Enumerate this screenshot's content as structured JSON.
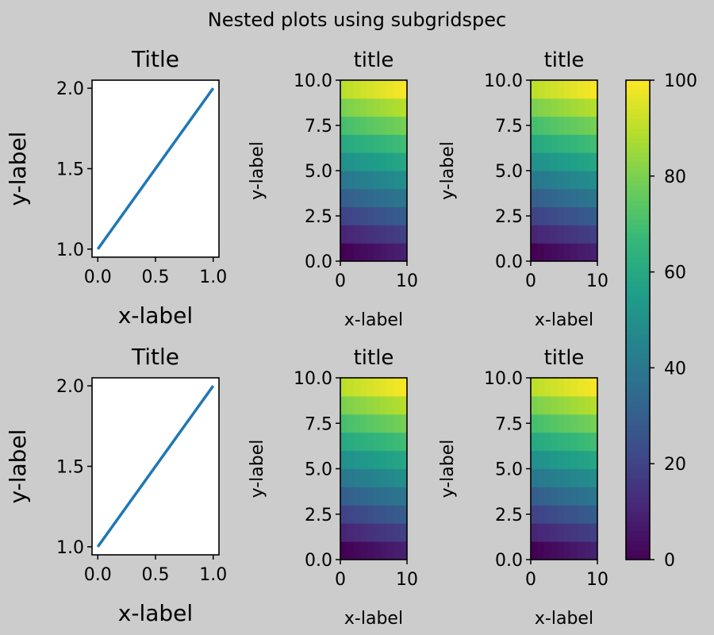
{
  "suptitle": "Nested plots using subgridspec",
  "colors": {
    "line": "#1f77b4",
    "background": "#cccccc",
    "colormap": "viridis"
  },
  "chart_data": [
    {
      "type": "line",
      "title": "Title",
      "xlabel": "x-label",
      "ylabel": "y-label",
      "x": [
        0,
        1
      ],
      "y": [
        1,
        2
      ],
      "xlim": [
        -0.05,
        1.05
      ],
      "ylim": [
        0.95,
        2.05
      ],
      "xticks": [
        "0.0",
        "0.5",
        "1.0"
      ],
      "yticks": [
        "1.0",
        "1.5",
        "2.0"
      ]
    },
    {
      "type": "heatmap",
      "title": "title",
      "xlabel": "x-label",
      "ylabel": "y-label",
      "values": "arange(100) reshaped 10x10 (row r, col c = 10r + c)",
      "xlim": [
        0,
        10
      ],
      "ylim": [
        0,
        10
      ],
      "xticks": [
        "0",
        "10"
      ],
      "yticks": [
        "0.0",
        "2.5",
        "5.0",
        "7.5",
        "10.0"
      ]
    },
    {
      "type": "heatmap",
      "title": "title",
      "xlabel": "x-label",
      "ylabel": "y-label",
      "values": "arange(100) reshaped 10x10 (row r, col c = 10r + c)",
      "xlim": [
        0,
        10
      ],
      "ylim": [
        0,
        10
      ],
      "xticks": [
        "0",
        "10"
      ],
      "yticks": [
        "0.0",
        "2.5",
        "5.0",
        "7.5",
        "10.0"
      ]
    },
    {
      "type": "line",
      "title": "Title",
      "xlabel": "x-label",
      "ylabel": "y-label",
      "x": [
        0,
        1
      ],
      "y": [
        1,
        2
      ],
      "xlim": [
        -0.05,
        1.05
      ],
      "ylim": [
        0.95,
        2.05
      ],
      "xticks": [
        "0.0",
        "0.5",
        "1.0"
      ],
      "yticks": [
        "1.0",
        "1.5",
        "2.0"
      ]
    },
    {
      "type": "heatmap",
      "title": "title",
      "xlabel": "x-label",
      "ylabel": "y-label",
      "values": "arange(100) reshaped 10x10 (row r, col c = 10r + c)",
      "xlim": [
        0,
        10
      ],
      "ylim": [
        0,
        10
      ],
      "xticks": [
        "0",
        "10"
      ],
      "yticks": [
        "0.0",
        "2.5",
        "5.0",
        "7.5",
        "10.0"
      ]
    },
    {
      "type": "heatmap",
      "title": "title",
      "xlabel": "x-label",
      "ylabel": "y-label",
      "values": "arange(100) reshaped 10x10 (row r, col c = 10r + c)",
      "xlim": [
        0,
        10
      ],
      "ylim": [
        0,
        10
      ],
      "xticks": [
        "0",
        "10"
      ],
      "yticks": [
        "0.0",
        "2.5",
        "5.0",
        "7.5",
        "10.0"
      ]
    }
  ],
  "colorbar": {
    "range": [
      0,
      100
    ],
    "ticks": [
      "0",
      "20",
      "40",
      "60",
      "80",
      "100"
    ]
  }
}
